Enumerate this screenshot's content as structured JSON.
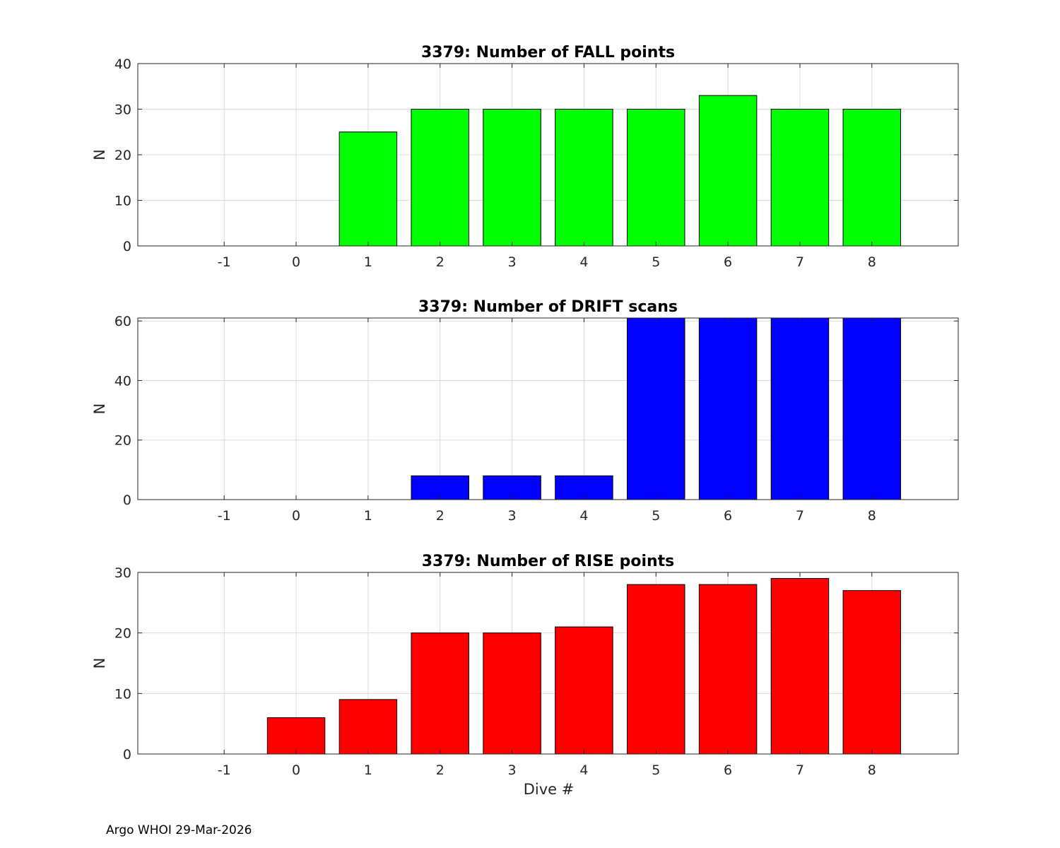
{
  "chart_data": [
    {
      "type": "bar",
      "title": "3379: Number of FALL points",
      "xlabel": "",
      "ylabel": "N",
      "categories": [
        -1,
        0,
        1,
        2,
        3,
        4,
        5,
        6,
        7,
        8
      ],
      "values": [
        0,
        0,
        25,
        30,
        30,
        30,
        30,
        33,
        30,
        30
      ],
      "xlim": [
        -2.2,
        9.2
      ],
      "ylim": [
        0,
        40
      ],
      "yticks": [
        0,
        10,
        20,
        30,
        40
      ],
      "color": "#00ff00",
      "grid": true
    },
    {
      "type": "bar",
      "title": "3379: Number of DRIFT scans",
      "xlabel": "",
      "ylabel": "N",
      "categories": [
        -1,
        0,
        1,
        2,
        3,
        4,
        5,
        6,
        7,
        8
      ],
      "values": [
        0,
        0,
        0,
        8,
        8,
        8,
        62,
        62,
        62,
        62
      ],
      "xlim": [
        -2.2,
        9.2
      ],
      "ylim": [
        0,
        61
      ],
      "yticks": [
        0,
        20,
        40,
        60
      ],
      "color": "#0000ff",
      "grid": true
    },
    {
      "type": "bar",
      "title": "3379: Number of RISE points",
      "xlabel": "Dive #",
      "ylabel": "N",
      "categories": [
        -1,
        0,
        1,
        2,
        3,
        4,
        5,
        6,
        7,
        8
      ],
      "values": [
        0,
        6,
        9,
        20,
        20,
        21,
        28,
        28,
        29,
        27
      ],
      "xlim": [
        -2.2,
        9.2
      ],
      "ylim": [
        0,
        30
      ],
      "yticks": [
        0,
        10,
        20,
        30
      ],
      "color": "#ff0000",
      "grid": true
    }
  ],
  "footer": {
    "text": "Argo WHOI 29-Mar-2026"
  }
}
